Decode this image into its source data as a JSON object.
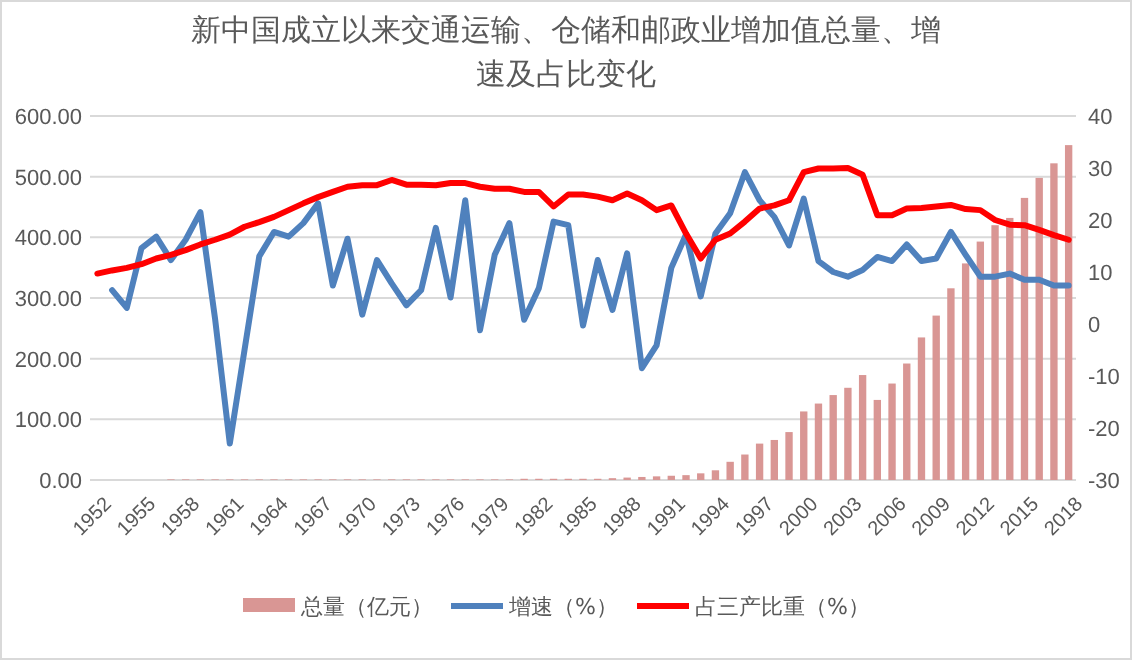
{
  "chart_data": {
    "type": "bar",
    "title": "新中国成立以来交通运输、仓储和邮政业增加值总量、增速及占比变化",
    "categories": [
      "1952",
      null,
      null,
      "1955",
      null,
      null,
      "1958",
      null,
      null,
      "1961",
      null,
      null,
      "1964",
      null,
      null,
      "1967",
      null,
      null,
      "1970",
      null,
      null,
      "1973",
      null,
      null,
      "1976",
      null,
      null,
      "1979",
      null,
      null,
      "1982",
      null,
      null,
      "1985",
      null,
      null,
      "1988",
      null,
      null,
      "1991",
      null,
      null,
      "1994",
      null,
      null,
      "1997",
      null,
      null,
      "2000",
      null,
      null,
      "2003",
      null,
      null,
      "2006",
      null,
      null,
      "2009",
      null,
      null,
      "2012",
      null,
      null,
      "2015",
      null,
      null,
      "2018"
    ],
    "series": [
      {
        "name": "总量（亿元）",
        "color": "#d99694",
        "values": [
          null,
          null,
          null,
          null,
          null,
          1,
          1,
          1,
          1,
          1,
          1,
          1,
          1,
          1,
          1,
          1,
          1,
          1,
          1,
          1,
          1,
          1,
          1,
          1,
          1,
          1,
          1,
          1,
          1,
          2,
          2,
          2,
          2,
          2,
          2,
          3,
          4,
          5,
          6,
          7,
          8,
          11,
          16,
          30,
          42,
          60,
          66,
          79,
          113,
          126,
          140,
          152,
          173,
          132,
          159,
          192,
          235,
          271,
          316,
          357,
          393,
          420,
          432,
          465,
          498,
          522,
          552
        ]
      },
      {
        "name": "增速（%）",
        "type": "line",
        "axis": "y2",
        "color": "#4f81bd",
        "values": [
          null,
          6.5,
          3.1,
          14.6,
          16.8,
          12.3,
          16.2,
          21.5,
          1.0,
          -23,
          -5,
          13,
          17.7,
          16.8,
          19.4,
          23.2,
          7.4,
          16.4,
          1.8,
          12.3,
          7.8,
          3.6,
          6.5,
          18.5,
          5.1,
          23.8,
          -1.2,
          13.3,
          19.4,
          0.8,
          6.9,
          19.7,
          19,
          -0.3,
          12.3,
          2.7,
          13.6,
          -8.5,
          -4.1,
          10.8,
          17.2,
          5.3,
          17.4,
          21.3,
          29.2,
          23.8,
          20.6,
          15.1,
          24.1,
          12.1,
          10,
          9.1,
          10.4,
          12.9,
          12.1,
          15.3,
          12.1,
          12.6,
          17.7,
          13.3,
          9.1,
          9.1,
          9.7,
          8.5,
          8.5,
          7.4,
          7.4
        ]
      },
      {
        "name": "占三产比重（%）",
        "type": "line",
        "axis": "y2",
        "color": "#ff0000",
        "values": [
          9.7,
          10.3,
          10.8,
          11.5,
          12.6,
          13.3,
          14.2,
          15.3,
          16.2,
          17.2,
          18.7,
          19.6,
          20.6,
          21.9,
          23.2,
          24.4,
          25.4,
          26.4,
          26.7,
          26.7,
          27.7,
          26.8,
          26.8,
          26.7,
          27.1,
          27.1,
          26.4,
          26,
          26,
          25.4,
          25.4,
          22.6,
          24.9,
          24.9,
          24.5,
          23.8,
          25.1,
          23.8,
          21.9,
          22.8,
          17.4,
          12.6,
          16.2,
          17.4,
          19.7,
          22.2,
          22.8,
          23.8,
          29.2,
          29.9,
          29.9,
          30,
          28.7,
          20.9,
          20.9,
          22.2,
          22.3,
          22.6,
          22.9,
          22.1,
          21.9,
          20,
          19.1,
          19,
          18.1,
          17.1,
          16.2
        ]
      }
    ],
    "ylim": [
      0,
      600
    ],
    "yticks": [
      {
        "value": 0,
        "label": "0.00"
      },
      {
        "value": 100,
        "label": "100.00"
      },
      {
        "value": 200,
        "label": "200.00"
      },
      {
        "value": 300,
        "label": "300.00"
      },
      {
        "value": 400,
        "label": "400.00"
      },
      {
        "value": 500,
        "label": "500.00"
      },
      {
        "value": 600,
        "label": "600.00"
      }
    ],
    "y2lim": [
      -30,
      40
    ],
    "y2ticks": [
      -30,
      -20,
      -10,
      0,
      10,
      20,
      30,
      40
    ],
    "grid": "y",
    "legend": "bottom"
  }
}
